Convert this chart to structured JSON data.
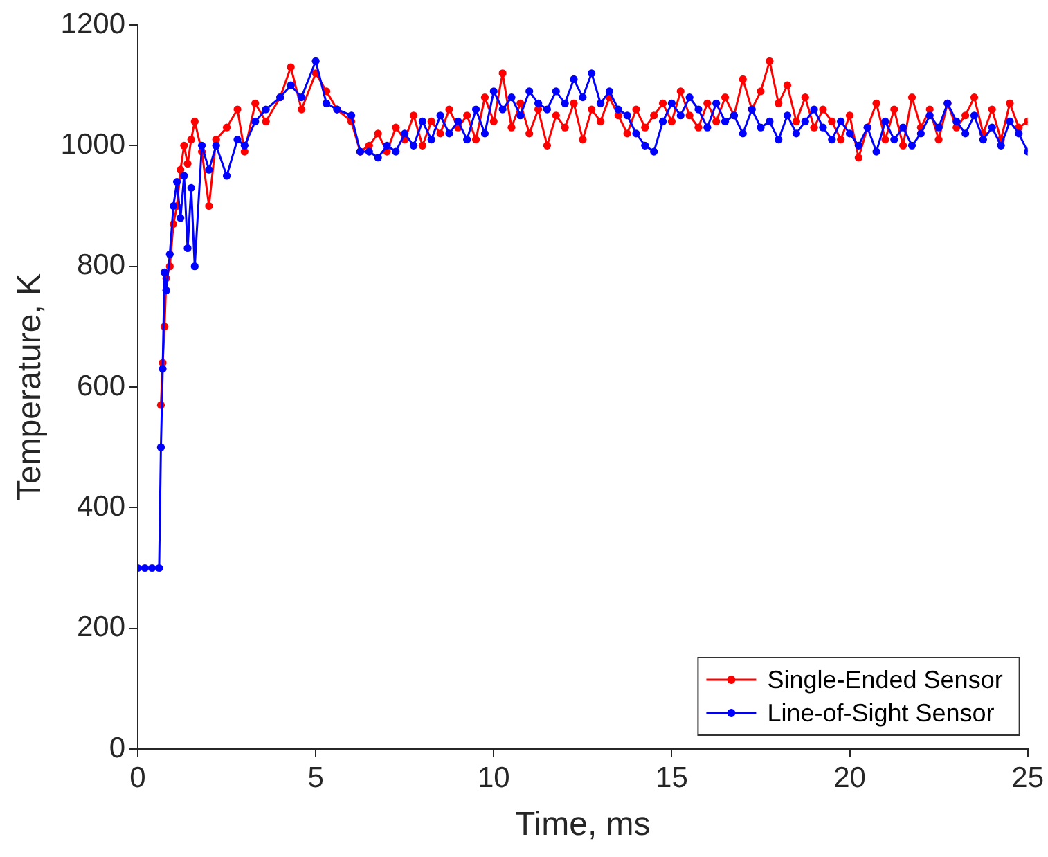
{
  "chart_data": {
    "type": "line",
    "xlabel": "Time, ms",
    "ylabel": "Temperature, K",
    "x": [
      0,
      0.2,
      0.4,
      0.6,
      0.65,
      0.7,
      0.75,
      0.8,
      0.9,
      1,
      1.1,
      1.2,
      1.3,
      1.4,
      1.5,
      1.6,
      1.8,
      2,
      2.2,
      2.5,
      2.8,
      3,
      3.3,
      3.6,
      4,
      4.3,
      4.6,
      5,
      5.3,
      5.6,
      6,
      6.25,
      6.5,
      6.75,
      7,
      7.25,
      7.5,
      7.75,
      8,
      8.25,
      8.5,
      8.75,
      9,
      9.25,
      9.5,
      9.75,
      10,
      10.25,
      10.5,
      10.75,
      11,
      11.25,
      11.5,
      11.75,
      12,
      12.25,
      12.5,
      12.75,
      13,
      13.25,
      13.5,
      13.75,
      14,
      14.25,
      14.5,
      14.75,
      15,
      15.25,
      15.5,
      15.75,
      16,
      16.25,
      16.5,
      16.75,
      17,
      17.25,
      17.5,
      17.75,
      18,
      18.25,
      18.5,
      18.75,
      19,
      19.25,
      19.5,
      19.75,
      20,
      20.25,
      20.5,
      20.75,
      21,
      21.25,
      21.5,
      21.75,
      22,
      22.25,
      22.5,
      22.75,
      23,
      23.25,
      23.5,
      23.75,
      24,
      24.25,
      24.5,
      24.75,
      25
    ],
    "series": [
      {
        "name": "Single-Ended Sensor",
        "color": "#ff0000",
        "values": [
          null,
          null,
          null,
          null,
          570,
          640,
          700,
          780,
          800,
          870,
          900,
          960,
          1000,
          970,
          1010,
          1040,
          990,
          900,
          1010,
          1030,
          1060,
          990,
          1070,
          1040,
          1080,
          1130,
          1060,
          1120,
          1090,
          1060,
          1040,
          990,
          1000,
          1020,
          990,
          1030,
          1010,
          1050,
          1000,
          1040,
          1020,
          1060,
          1030,
          1050,
          1010,
          1080,
          1040,
          1120,
          1030,
          1070,
          1020,
          1060,
          1000,
          1050,
          1030,
          1070,
          1010,
          1060,
          1040,
          1080,
          1050,
          1020,
          1060,
          1030,
          1050,
          1070,
          1040,
          1090,
          1050,
          1030,
          1070,
          1040,
          1080,
          1050,
          1110,
          1060,
          1090,
          1140,
          1070,
          1100,
          1040,
          1080,
          1030,
          1060,
          1040,
          1010,
          1050,
          980,
          1030,
          1070,
          1010,
          1060,
          1000,
          1080,
          1030,
          1060,
          1010,
          1070,
          1030,
          1050,
          1080,
          1020,
          1060,
          1010,
          1070,
          1030,
          1040
        ]
      },
      {
        "name": "Line-of-Sight Sensor",
        "color": "#0000ff",
        "values": [
          300,
          300,
          300,
          300,
          500,
          630,
          790,
          760,
          820,
          900,
          940,
          880,
          950,
          830,
          930,
          800,
          1000,
          960,
          1000,
          950,
          1010,
          1000,
          1040,
          1060,
          1080,
          1100,
          1080,
          1140,
          1070,
          1060,
          1050,
          990,
          990,
          980,
          1000,
          990,
          1020,
          1000,
          1040,
          1010,
          1050,
          1020,
          1040,
          1010,
          1060,
          1020,
          1090,
          1060,
          1080,
          1050,
          1090,
          1070,
          1060,
          1090,
          1070,
          1110,
          1080,
          1120,
          1070,
          1090,
          1060,
          1050,
          1020,
          1000,
          990,
          1040,
          1070,
          1050,
          1080,
          1060,
          1030,
          1070,
          1040,
          1050,
          1020,
          1060,
          1030,
          1040,
          1010,
          1050,
          1020,
          1040,
          1060,
          1030,
          1010,
          1040,
          1020,
          1000,
          1030,
          990,
          1040,
          1010,
          1030,
          1000,
          1020,
          1050,
          1030,
          1070,
          1040,
          1020,
          1050,
          1010,
          1030,
          1000,
          1040,
          1020,
          990
        ]
      }
    ],
    "xlim": [
      0,
      25
    ],
    "xticks": [
      0,
      5,
      10,
      15,
      20,
      25
    ],
    "ylim": [
      0,
      1200
    ],
    "yticks": [
      0,
      200,
      400,
      600,
      800,
      1000,
      1200
    ],
    "grid": false,
    "legend": "bottom right",
    "marker": "circle",
    "line_style": "solid"
  }
}
